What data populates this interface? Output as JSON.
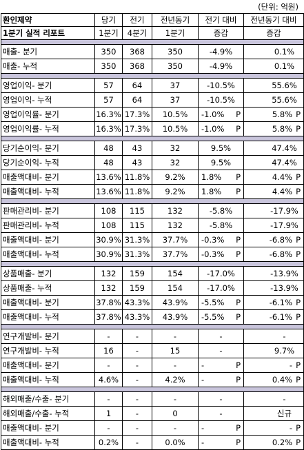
{
  "unit_label": "(단위: 억원)",
  "header": {
    "company": "환인제약",
    "report": "1분기 실적 리포트",
    "col1": [
      "당기",
      "1분기"
    ],
    "col2": [
      "전기",
      "4분기"
    ],
    "col3": [
      "전년동기",
      "1분기"
    ],
    "col4": [
      "전기 대비",
      "증감"
    ],
    "col5": [
      "전년동기 대비",
      "증감"
    ]
  },
  "sections": [
    {
      "rows": [
        {
          "label": "매출- 분기",
          "v1": "350",
          "v2": "368",
          "v3": "350",
          "d1": "-4.9%",
          "d1p": "",
          "d2": "0.1%",
          "d2p": ""
        },
        {
          "label": "매출- 누적",
          "v1": "350",
          "v2": "368",
          "v3": "350",
          "d1": "-4.9%",
          "d1p": "",
          "d2": "0.1%",
          "d2p": ""
        }
      ]
    },
    {
      "rows": [
        {
          "label": "영업이익- 분기",
          "v1": "57",
          "v2": "64",
          "v3": "37",
          "d1": "-10.5%",
          "d1p": "",
          "d2": "55.6%",
          "d2p": ""
        },
        {
          "label": "영업이익- 누적",
          "v1": "57",
          "v2": "64",
          "v3": "37",
          "d1": "-10.5%",
          "d1p": "",
          "d2": "55.6%",
          "d2p": ""
        },
        {
          "label": "영업이익률- 분기",
          "v1": "16.3%",
          "v2": "17.3%",
          "v3": "10.5%",
          "d1": "-1.0%",
          "d1p": "P",
          "d2": "5.8%",
          "d2p": "P"
        },
        {
          "label": "영업이익률- 누적",
          "v1": "16.3%",
          "v2": "17.3%",
          "v3": "10.5%",
          "d1": "-1.0%",
          "d1p": "P",
          "d2": "5.8%",
          "d2p": "P"
        }
      ]
    },
    {
      "rows": [
        {
          "label": "당기순이익- 분기",
          "v1": "48",
          "v2": "43",
          "v3": "32",
          "d1": "9.5%",
          "d1p": "",
          "d2": "47.4%",
          "d2p": ""
        },
        {
          "label": "당기순이익- 누적",
          "v1": "48",
          "v2": "43",
          "v3": "32",
          "d1": "9.5%",
          "d1p": "",
          "d2": "47.4%",
          "d2p": ""
        },
        {
          "label": "매출액대비- 분기",
          "v1": "13.6%",
          "v2": "11.8%",
          "v3": "9.2%",
          "d1": "1.8%",
          "d1p": "P",
          "d2": "4.4%",
          "d2p": "P"
        },
        {
          "label": "매출액대비- 누적",
          "v1": "13.6%",
          "v2": "11.8%",
          "v3": "9.2%",
          "d1": "1.8%",
          "d1p": "P",
          "d2": "4.4%",
          "d2p": "P"
        }
      ]
    },
    {
      "rows": [
        {
          "label": "판매관리비- 분기",
          "v1": "108",
          "v2": "115",
          "v3": "132",
          "d1": "-5.8%",
          "d1p": "",
          "d2": "-17.9%",
          "d2p": ""
        },
        {
          "label": "판매관리비- 누적",
          "v1": "108",
          "v2": "115",
          "v3": "132",
          "d1": "-5.8%",
          "d1p": "",
          "d2": "-17.9%",
          "d2p": ""
        },
        {
          "label": "매출액대비- 분기",
          "v1": "30.9%",
          "v2": "31.3%",
          "v3": "37.7%",
          "d1": "-0.3%",
          "d1p": "P",
          "d2": "-6.8%",
          "d2p": "P"
        },
        {
          "label": "매출액대비- 누적",
          "v1": "30.9%",
          "v2": "31.3%",
          "v3": "37.7%",
          "d1": "-0.3%",
          "d1p": "P",
          "d2": "-6.8%",
          "d2p": "P"
        }
      ]
    },
    {
      "rows": [
        {
          "label": "상품매출- 분기",
          "v1": "132",
          "v2": "159",
          "v3": "154",
          "d1": "-17.0%",
          "d1p": "",
          "d2": "-13.9%",
          "d2p": ""
        },
        {
          "label": "상품매출- 누적",
          "v1": "132",
          "v2": "159",
          "v3": "154",
          "d1": "-17.0%",
          "d1p": "",
          "d2": "-13.9%",
          "d2p": ""
        },
        {
          "label": "매출액대비- 분기",
          "v1": "37.8%",
          "v2": "43.3%",
          "v3": "43.9%",
          "d1": "-5.5%",
          "d1p": "P",
          "d2": "-6.1%",
          "d2p": "P"
        },
        {
          "label": "매출액대비- 누적",
          "v1": "37.8%",
          "v2": "43.3%",
          "v3": "43.9%",
          "d1": "-5.5%",
          "d1p": "P",
          "d2": "-6.1%",
          "d2p": "P"
        }
      ]
    },
    {
      "rows": [
        {
          "label": "연구개발비- 분기",
          "v1": "-",
          "v2": "-",
          "v3": "-",
          "d1": "-",
          "d1p": "",
          "d2": "-",
          "d2p": ""
        },
        {
          "label": "연구개발비- 누적",
          "v1": "16",
          "v2": "-",
          "v3": "15",
          "d1": "-",
          "d1p": "",
          "d2": "9.7%",
          "d2p": ""
        },
        {
          "label": "매출액대비- 분기",
          "v1": "-",
          "v2": "-",
          "v3": "-",
          "d1": "-",
          "d1p": "P",
          "d2": "-",
          "d2p": "P"
        },
        {
          "label": "매출액대비- 누적",
          "v1": "4.6%",
          "v2": "-",
          "v3": "4.2%",
          "d1": "-",
          "d1p": "P",
          "d2": "0.4%",
          "d2p": "P"
        }
      ]
    },
    {
      "rows": [
        {
          "label": "해외매출/수출- 분기",
          "v1": "-",
          "v2": "-",
          "v3": "-",
          "d1": "-",
          "d1p": "",
          "d2": "-",
          "d2p": ""
        },
        {
          "label": "해외매출/수출- 누적",
          "v1": "1",
          "v2": "-",
          "v3": "0",
          "d1": "-",
          "d1p": "",
          "d2": "신규",
          "d2p": ""
        },
        {
          "label": "매출액대비- 분기",
          "v1": "-",
          "v2": "-",
          "v3": "-",
          "d1": "-",
          "d1p": "P",
          "d2": "-",
          "d2p": "P"
        },
        {
          "label": "매출액대비- 누적",
          "v1": "0.2%",
          "v2": "-",
          "v3": "0.0%",
          "d1": "-",
          "d1p": "P",
          "d2": "0.2%",
          "d2p": "P"
        }
      ]
    }
  ],
  "colors": {
    "separator": "#c9c5dc",
    "border": "#000000"
  }
}
